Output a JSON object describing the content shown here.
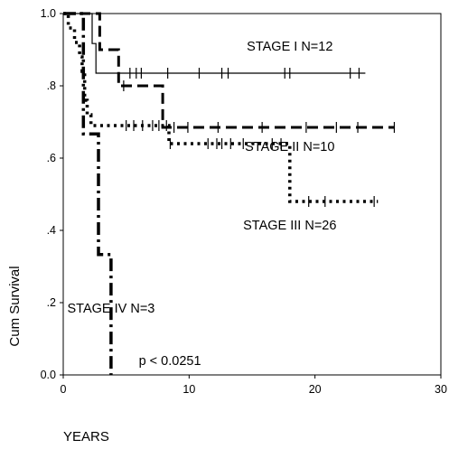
{
  "chart_data": {
    "type": "line",
    "chart_kind": "kaplan-meier survival curve",
    "title": "",
    "xlabel": "YEARS",
    "ylabel": "Cum Survival",
    "xlim": [
      0,
      30
    ],
    "ylim": [
      0,
      1
    ],
    "x_ticks": [
      {
        "value": 0,
        "label": "0"
      },
      {
        "value": 10,
        "label": "10"
      },
      {
        "value": 20,
        "label": "20"
      },
      {
        "value": 30,
        "label": "30"
      }
    ],
    "y_ticks": [
      {
        "value": 0,
        "label": "0.0"
      },
      {
        "value": 0.2,
        "label": ".2"
      },
      {
        "value": 0.4,
        "label": ".4"
      },
      {
        "value": 0.6,
        "label": ".6"
      },
      {
        "value": 0.8,
        "label": ".8"
      },
      {
        "value": 1.0,
        "label": "1.0"
      }
    ],
    "grid": false,
    "series": [
      {
        "key": "stage1",
        "line_style": "solid",
        "steps": [
          [
            0,
            1.0
          ],
          [
            2.3,
            1.0
          ],
          [
            2.3,
            0.917
          ],
          [
            2.6,
            0.917
          ],
          [
            2.6,
            0.835
          ],
          [
            24.0,
            0.835
          ]
        ],
        "censored": [
          [
            5.3,
            0.835
          ],
          [
            5.8,
            0.835
          ],
          [
            6.2,
            0.835
          ],
          [
            8.3,
            0.835
          ],
          [
            10.8,
            0.835
          ],
          [
            12.6,
            0.835
          ],
          [
            13.1,
            0.835
          ],
          [
            17.6,
            0.835
          ],
          [
            18.0,
            0.835
          ],
          [
            22.8,
            0.835
          ],
          [
            23.5,
            0.835
          ]
        ],
        "label": "STAGE I  N=12",
        "label_pos": [
          18.0,
          0.91
        ]
      },
      {
        "key": "stage2",
        "line_style": "dashed",
        "steps": [
          [
            0,
            1.0
          ],
          [
            2.9,
            1.0
          ],
          [
            2.9,
            0.9
          ],
          [
            4.4,
            0.9
          ],
          [
            4.4,
            0.8
          ],
          [
            7.9,
            0.8
          ],
          [
            7.9,
            0.685
          ],
          [
            26.3,
            0.685
          ]
        ],
        "censored": [
          [
            4.8,
            0.8
          ],
          [
            8.8,
            0.685
          ],
          [
            9.9,
            0.685
          ],
          [
            12.3,
            0.685
          ],
          [
            15.8,
            0.685
          ],
          [
            19.3,
            0.685
          ],
          [
            21.7,
            0.685
          ],
          [
            23.4,
            0.685
          ],
          [
            26.3,
            0.685
          ]
        ],
        "label": "STAGE II  N=10",
        "label_pos": [
          18.0,
          0.633
        ]
      },
      {
        "key": "stage3",
        "line_style": "dotted",
        "steps": [
          [
            0,
            1.0
          ],
          [
            0.4,
            1.0
          ],
          [
            0.4,
            0.96
          ],
          [
            0.9,
            0.96
          ],
          [
            0.9,
            0.92
          ],
          [
            1.3,
            0.92
          ],
          [
            1.3,
            0.88
          ],
          [
            1.5,
            0.88
          ],
          [
            1.5,
            0.84
          ],
          [
            1.7,
            0.84
          ],
          [
            1.7,
            0.76
          ],
          [
            1.9,
            0.76
          ],
          [
            1.9,
            0.72
          ],
          [
            2.2,
            0.72
          ],
          [
            2.2,
            0.69
          ],
          [
            8.4,
            0.69
          ],
          [
            8.4,
            0.64
          ],
          [
            18.0,
            0.64
          ],
          [
            18.0,
            0.48
          ],
          [
            25.0,
            0.48
          ]
        ],
        "censored": [
          [
            5.0,
            0.69
          ],
          [
            5.6,
            0.69
          ],
          [
            6.3,
            0.69
          ],
          [
            7.1,
            0.69
          ],
          [
            7.6,
            0.69
          ],
          [
            8.2,
            0.69
          ],
          [
            8.5,
            0.64
          ],
          [
            11.5,
            0.64
          ],
          [
            12.2,
            0.64
          ],
          [
            12.6,
            0.64
          ],
          [
            13.3,
            0.64
          ],
          [
            14.3,
            0.64
          ],
          [
            16.6,
            0.64
          ],
          [
            17.3,
            0.64
          ],
          [
            19.5,
            0.48
          ],
          [
            20.8,
            0.48
          ],
          [
            24.7,
            0.48
          ]
        ],
        "label": "STAGE III  N=26",
        "label_pos": [
          18.0,
          0.415
        ]
      },
      {
        "key": "stage4",
        "line_style": "dash-dot",
        "steps": [
          [
            0,
            1.0
          ],
          [
            1.6,
            1.0
          ],
          [
            1.6,
            0.667
          ],
          [
            2.8,
            0.667
          ],
          [
            2.8,
            0.333
          ],
          [
            3.8,
            0.333
          ],
          [
            3.8,
            0.0
          ]
        ],
        "censored": [],
        "label": "STAGE IV  N=3",
        "label_pos": [
          3.8,
          0.185
        ]
      }
    ],
    "annotations": [
      {
        "text": "p < 0.0251",
        "pos": [
          6.0,
          0.04
        ]
      }
    ]
  }
}
